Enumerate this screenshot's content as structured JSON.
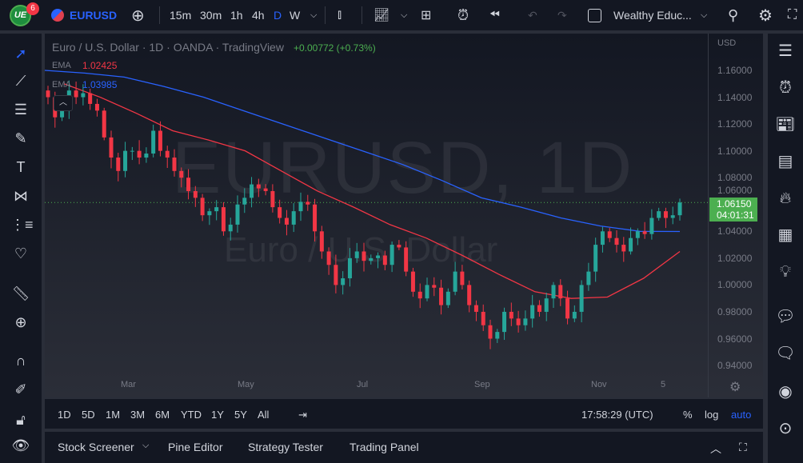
{
  "header": {
    "notification_count": "6",
    "symbol": "EURUSD",
    "intervals": [
      "15m",
      "30m",
      "1h",
      "4h",
      "D",
      "W"
    ],
    "active_interval": "D",
    "layout_name": "Wealthy Educ..."
  },
  "legend": {
    "title": "Euro / U.S. Dollar · 1D · OANDA · TradingView",
    "change": "+0.00772 (+0.73%)",
    "ema1_label": "EMA",
    "ema1_value": "1.02425",
    "ema2_label": "EMA",
    "ema2_value": "1.03985"
  },
  "watermark": {
    "line1": "EURUSD, 1D",
    "line2": "Euro / U.S. Dollar"
  },
  "colors": {
    "up": "#26a69a",
    "down": "#f23645",
    "ema_red": "#f23645",
    "ema_blue": "#2962ff",
    "price_tag": "#4caf50",
    "accent": "#2962ff"
  },
  "price_axis": {
    "currency": "USD",
    "current_price": "1.06150",
    "countdown": "04:01:31"
  },
  "chart_data": {
    "type": "candlestick",
    "y_ticks": [
      "1.16000",
      "1.14000",
      "1.12000",
      "1.10000",
      "1.08000",
      "1.06000",
      "1.04000",
      "1.02000",
      "1.00000",
      "0.98000",
      "0.96000",
      "0.94000"
    ],
    "ylim": [
      0.935,
      1.175
    ],
    "x_ticks": [
      "Mar",
      "May",
      "Jul",
      "Sep",
      "Nov",
      "5"
    ],
    "closes": [
      1.14,
      1.125,
      1.13,
      1.145,
      1.14,
      1.143,
      1.135,
      1.13,
      1.11,
      1.095,
      1.085,
      1.1,
      1.1,
      1.095,
      1.098,
      1.115,
      1.1,
      1.095,
      1.085,
      1.08,
      1.07,
      1.065,
      1.052,
      1.055,
      1.058,
      1.04,
      1.045,
      1.06,
      1.065,
      1.075,
      1.072,
      1.07,
      1.058,
      1.05,
      1.045,
      1.055,
      1.062,
      1.06,
      1.04,
      1.025,
      1.015,
      1.0,
      1.005,
      1.02,
      1.025,
      1.018,
      1.02,
      1.022,
      1.015,
      1.03,
      1.028,
      1.01,
      0.995,
      0.99,
      1.0,
      0.998,
      0.985,
      0.995,
      1.01,
      1.0,
      0.985,
      0.98,
      0.97,
      0.96,
      0.965,
      0.98,
      0.975,
      0.97,
      0.975,
      0.985,
      0.98,
      0.99,
      1.0,
      0.99,
      0.975,
      0.98,
      1.0,
      1.01,
      1.03,
      1.04,
      1.035,
      1.03,
      1.025,
      1.035,
      1.04,
      1.038,
      1.05,
      1.055,
      1.05,
      1.052,
      1.0615
    ],
    "ema_blue": [
      1.16,
      1.158,
      1.155,
      1.148,
      1.14,
      1.13,
      1.12,
      1.11,
      1.1,
      1.09,
      1.078,
      1.065,
      1.058,
      1.05,
      1.044,
      1.04,
      1.0399
    ],
    "ema_red": [
      1.15,
      1.14,
      1.128,
      1.115,
      1.108,
      1.1,
      1.085,
      1.07,
      1.058,
      1.045,
      1.035,
      1.022,
      1.008,
      0.995,
      0.99,
      0.991,
      1.005,
      1.025
    ]
  },
  "range_bar": {
    "ranges": [
      "1D",
      "5D",
      "1M",
      "3M",
      "6M",
      "YTD",
      "1Y",
      "5Y",
      "All"
    ],
    "time": "17:58:29 (UTC)",
    "percent": "%",
    "log": "log",
    "auto": "auto"
  },
  "bottom_bar": {
    "tabs": [
      "Stock Screener",
      "Pine Editor",
      "Strategy Tester",
      "Trading Panel"
    ]
  }
}
